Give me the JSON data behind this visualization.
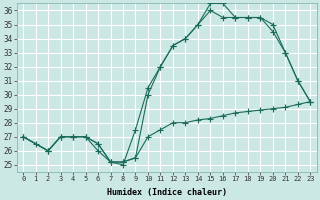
{
  "xlabel": "Humidex (Indice chaleur)",
  "bg_color": "#cce8e4",
  "grid_color": "#b0d4d0",
  "line_color": "#1a6b5a",
  "xlim": [
    -0.5,
    23.5
  ],
  "ylim": [
    24.5,
    36.5
  ],
  "xticks": [
    0,
    1,
    2,
    3,
    4,
    5,
    6,
    7,
    8,
    9,
    10,
    11,
    12,
    13,
    14,
    15,
    16,
    17,
    18,
    19,
    20,
    21,
    22,
    23
  ],
  "yticks": [
    25,
    26,
    27,
    28,
    29,
    30,
    31,
    32,
    33,
    34,
    35,
    36
  ],
  "line1_x": [
    0,
    1,
    2,
    3,
    4,
    5,
    6,
    7,
    8,
    9,
    10,
    11,
    12,
    13,
    14,
    15,
    16,
    17,
    18,
    19,
    20,
    21,
    22,
    23
  ],
  "line1_y": [
    27.0,
    26.5,
    26.0,
    27.0,
    27.0,
    27.0,
    26.5,
    25.2,
    25.2,
    25.5,
    27.0,
    27.5,
    28.0,
    28.0,
    28.2,
    28.3,
    28.5,
    28.7,
    28.8,
    28.9,
    29.0,
    29.1,
    29.3,
    29.5
  ],
  "line2_x": [
    0,
    2,
    3,
    4,
    5,
    6,
    7,
    8,
    9,
    10,
    11,
    12,
    13,
    14,
    15,
    16,
    17,
    18,
    19,
    20,
    21,
    22,
    23
  ],
  "line2_y": [
    27.0,
    26.0,
    27.0,
    27.0,
    27.0,
    26.0,
    25.2,
    25.0,
    27.5,
    30.5,
    32.0,
    33.5,
    34.0,
    35.0,
    36.0,
    35.5,
    35.5,
    35.5,
    35.5,
    34.5,
    33.0,
    31.0,
    29.5
  ],
  "line3_x": [
    0,
    2,
    3,
    4,
    5,
    6,
    7,
    8,
    9,
    10,
    11,
    12,
    13,
    14,
    15,
    16,
    17,
    18,
    19,
    20,
    21,
    22,
    23
  ],
  "line3_y": [
    27.0,
    26.0,
    27.0,
    27.0,
    27.0,
    26.5,
    25.2,
    25.2,
    25.5,
    30.0,
    32.0,
    33.5,
    34.0,
    35.0,
    36.5,
    36.5,
    35.5,
    35.5,
    35.5,
    35.0,
    33.0,
    31.0,
    29.5
  ]
}
